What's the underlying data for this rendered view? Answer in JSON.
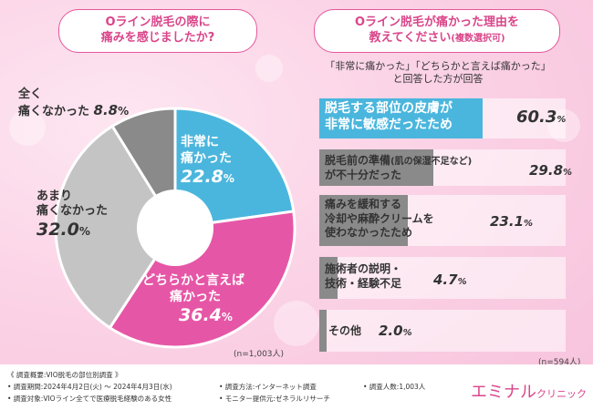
{
  "left": {
    "question_l1": "Oライン脱毛の際に",
    "question_l2": "痛みを感じましたか?",
    "n": "(n=1,003人)"
  },
  "right": {
    "question_l1": "Oライン脱毛が痛かった理由を",
    "question_l2": "教えてください",
    "question_sub": "(複数選択可)",
    "note_l1": "「非常に痛かった」「どちらかと言えば痛かった」",
    "note_l2": "と回答した方が回答",
    "n": "(n=594人)"
  },
  "chart_data": [
    {
      "type": "pie",
      "unit": "%",
      "labels": [
        {
          "l1": "非常に",
          "l2": "痛かった",
          "v": "22.8"
        },
        {
          "l1": "どちらかと言えば",
          "l2": "痛かった",
          "v": "36.4"
        },
        {
          "l1": "あまり",
          "l2": "痛くなかった",
          "v": "32.0"
        },
        {
          "l1": "全く",
          "l2": "痛くなかった",
          "v": "8.8"
        }
      ],
      "values": [
        22.8,
        36.4,
        32.0,
        8.8
      ],
      "colors": [
        "#4bb6dd",
        "#e656a6",
        "#c4c4c4",
        "#8a8a8a"
      ]
    },
    {
      "type": "bar",
      "unit": "%",
      "labels": [
        {
          "l1": "脱毛する部位の皮膚が",
          "l2": "非常に敏感だったため",
          "v": "60.3"
        },
        {
          "l1": "脱毛前の準備",
          "note": "(肌の保湿不足など)",
          "l2": "が不十分だった",
          "v": "29.8"
        },
        {
          "l1": "痛みを緩和する",
          "l2": "冷却や麻酔クリームを",
          "l3": "使わなかったため",
          "v": "23.1"
        },
        {
          "l1": "施術者の説明・",
          "l2": "技術・経験不足",
          "v": "4.7"
        },
        {
          "l1": "その他",
          "v": "2.0"
        }
      ],
      "values": [
        60.3,
        29.8,
        23.1,
        4.7,
        2.0
      ],
      "colors": [
        "#4bb6dd",
        "#8a8a8a",
        "#8a8a8a",
        "#8a8a8a",
        "#8a8a8a"
      ]
    }
  ],
  "footer": {
    "summary": "《 調査概要:VIO脱毛の部位別調査 》",
    "period": "• 調査期間:2024年4月2日(火) 〜 2024年4月3日(水)",
    "target": "• 調査対象:VIOライン全てで医療脱毛経験のある女性",
    "method": "• 調査方法:インターネット調査",
    "provider": "• モニター提供元:ゼネラルリサーチ",
    "respondents": "• 調査人数:1,003人"
  },
  "brand": {
    "name": "エミナル",
    "suffix": "クリニック"
  }
}
